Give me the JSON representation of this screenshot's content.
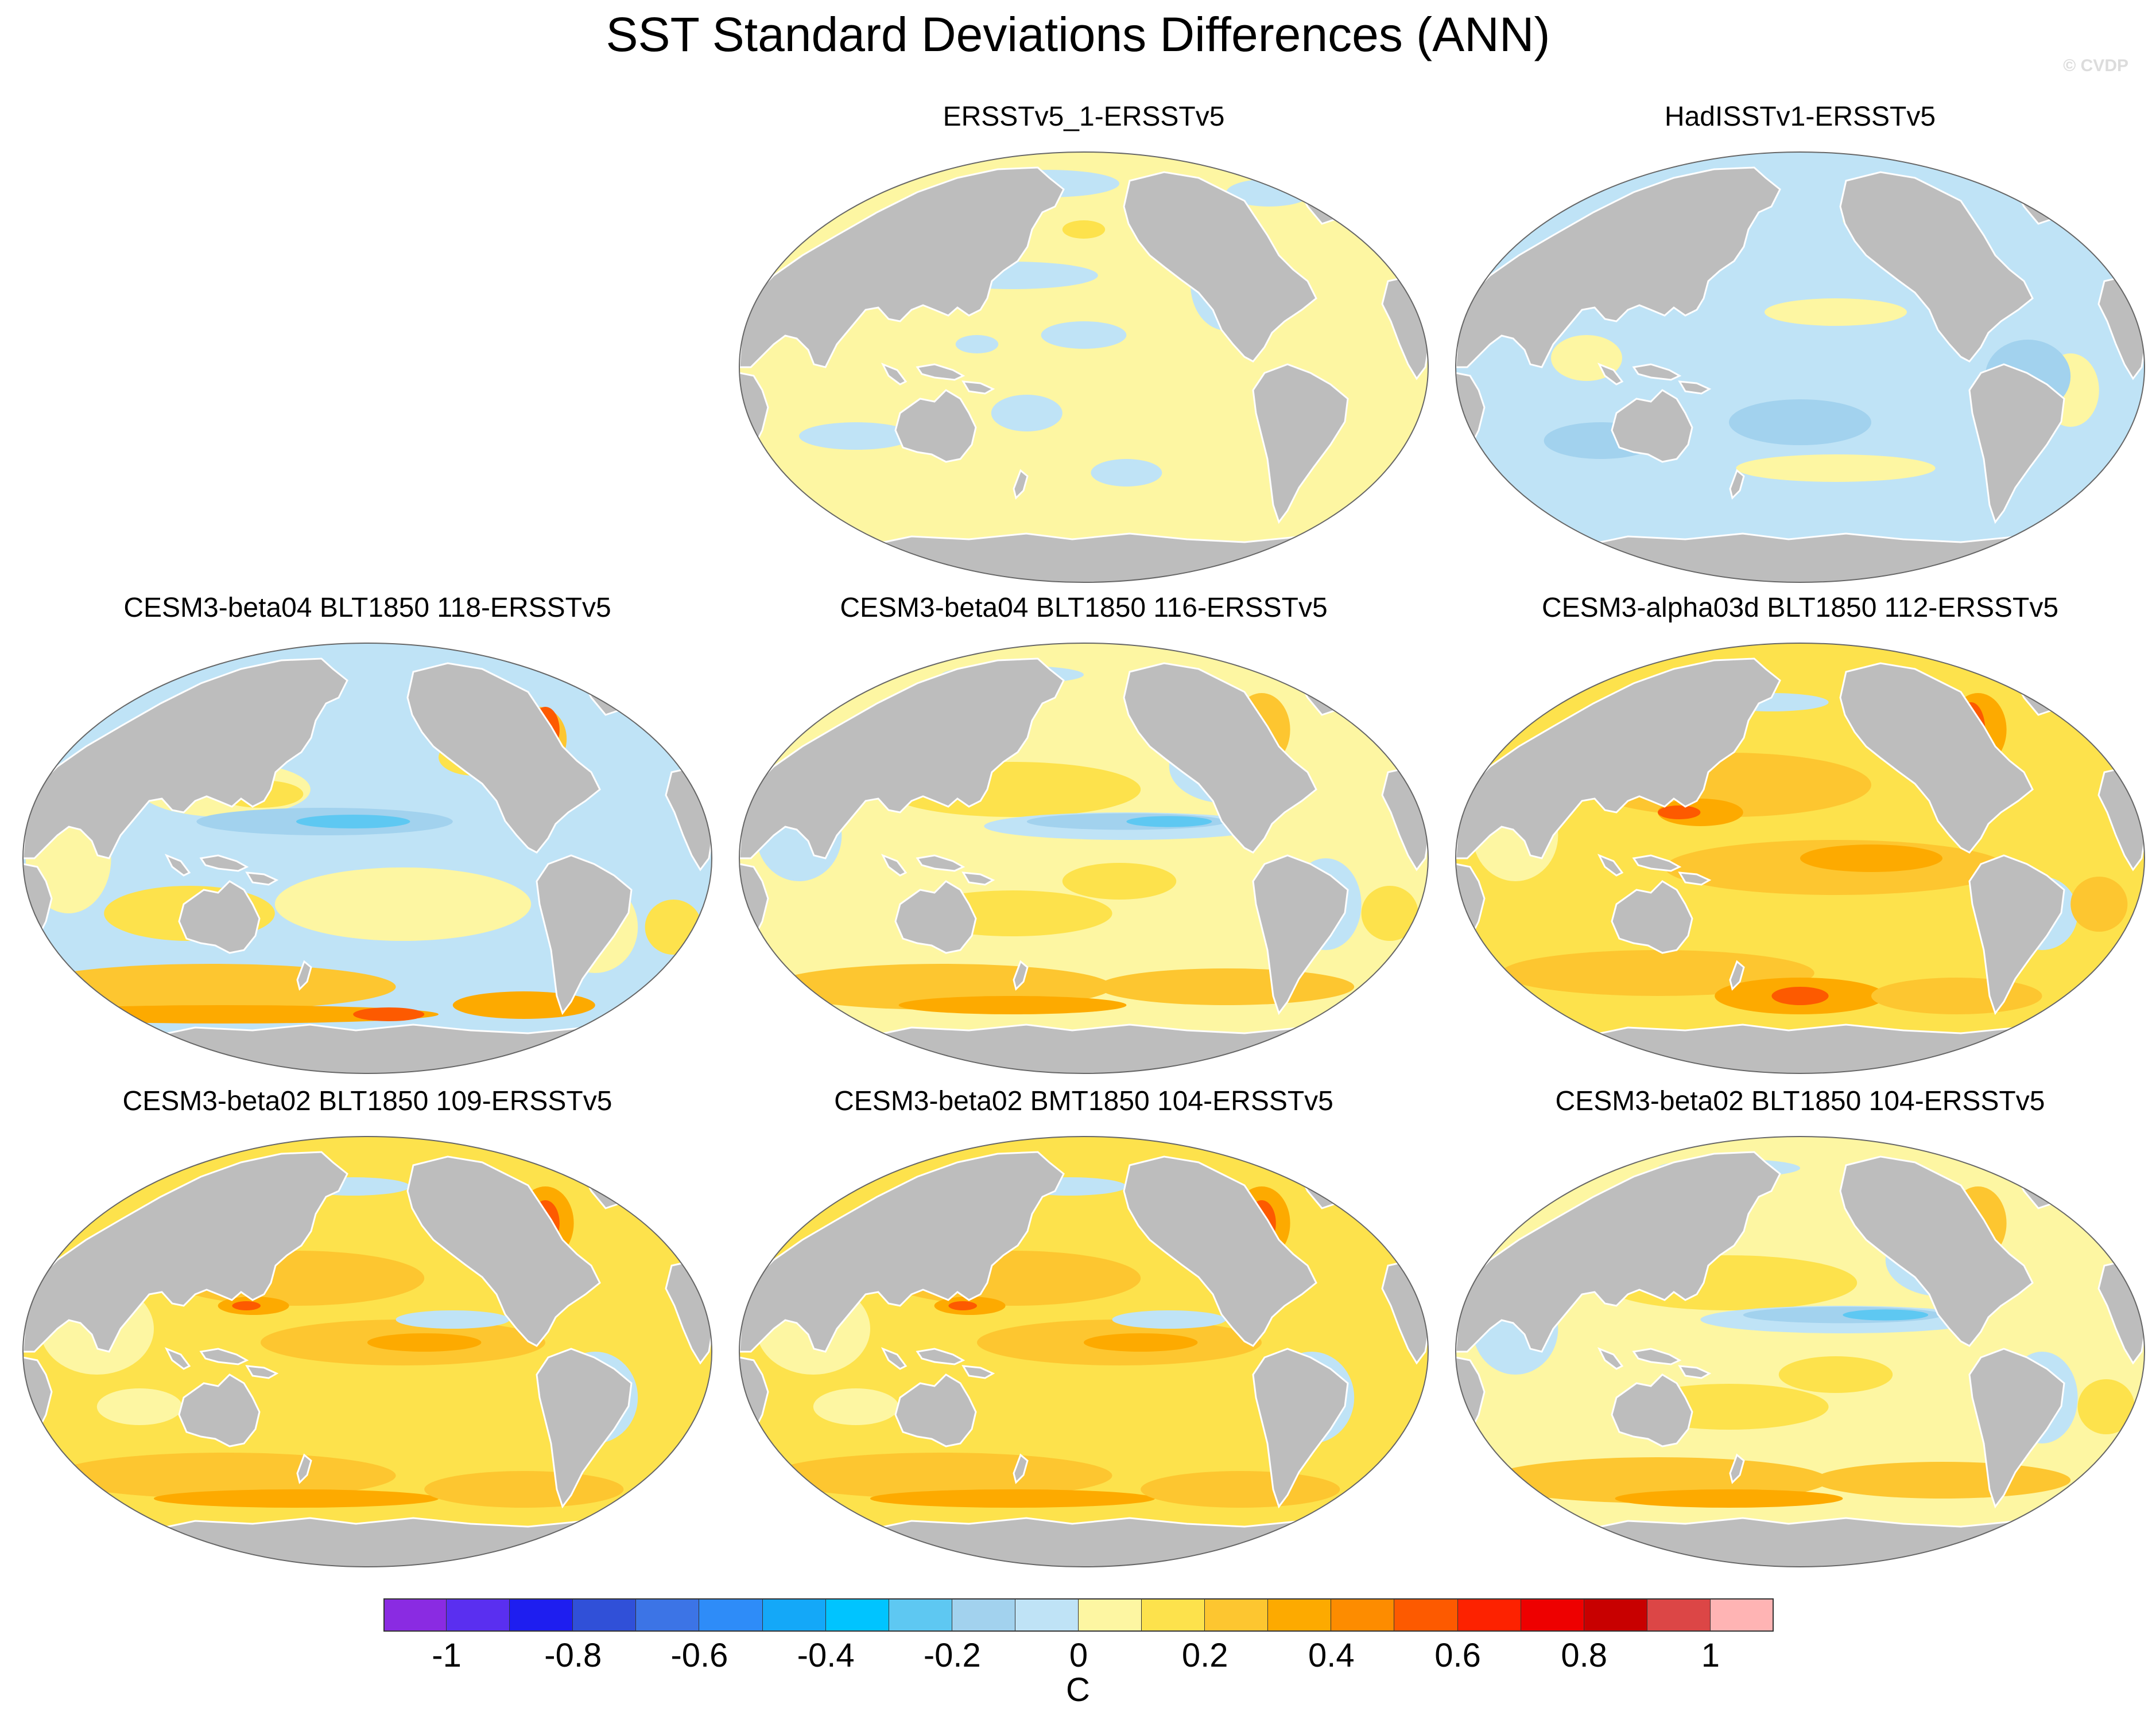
{
  "title": "SST Standard Deviations Differences (ANN)",
  "credit": "© CVDP",
  "panels": [
    {
      "label": "ERSSTv5_1-ERSSTv5",
      "scheme": "pale"
    },
    {
      "label": "HadISSTv1-ERSSTv5",
      "scheme": "had"
    },
    {
      "label": "CESM3-beta04 BLT1850 118-ERSSTv5",
      "scheme": "model_cool"
    },
    {
      "label": "CESM3-beta04 BLT1850 116-ERSSTv5",
      "scheme": "model_mixed"
    },
    {
      "label": "CESM3-alpha03d BLT1850 112-ERSSTv5",
      "scheme": "model_warm"
    },
    {
      "label": "CESM3-beta02 BLT1850 109-ERSSTv5",
      "scheme": "model_warm2"
    },
    {
      "label": "CESM3-beta02 BMT1850 104-ERSSTv5",
      "scheme": "model_warm2"
    },
    {
      "label": "CESM3-beta02 BLT1850 104-ERSSTv5",
      "scheme": "model_mixed"
    }
  ],
  "colorbar": {
    "colors": [
      "#8a2be2",
      "#5a2ff0",
      "#1e1ef0",
      "#3050d8",
      "#3c74e6",
      "#2e8cf8",
      "#14a8f8",
      "#00c4ff",
      "#5ec8f2",
      "#a2d2ee",
      "#bfe3f6",
      "#fdf6a2",
      "#fde24c",
      "#fdc630",
      "#fdaa00",
      "#fd8c00",
      "#fd5a00",
      "#fd2200",
      "#ee0000",
      "#c80000",
      "#dc4646",
      "#ffb4b4"
    ],
    "labels": [
      "-1",
      "-0.8",
      "-0.6",
      "-0.4",
      "-0.2",
      "0",
      "0.2",
      "0.4",
      "0.6",
      "0.8",
      "1"
    ],
    "units": "C"
  }
}
